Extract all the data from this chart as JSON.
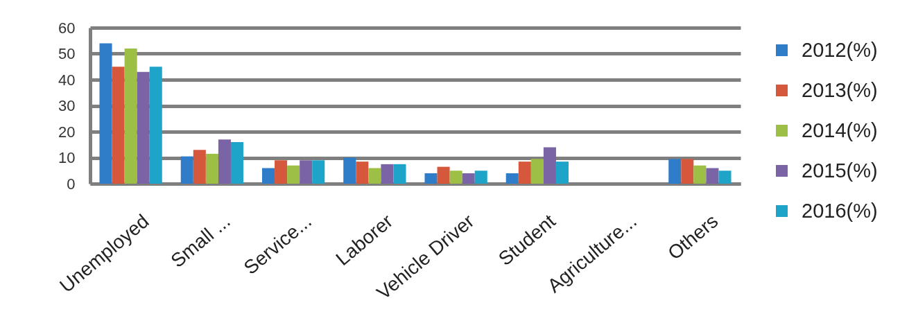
{
  "chart_data": {
    "type": "bar",
    "categories": [
      "Unemployed",
      "Small ...",
      "Service...",
      "Laborer",
      "Vehicle Driver",
      "Student",
      "Agriculture...",
      "Others"
    ],
    "series": [
      {
        "name": "2012(%)",
        "color": "#2f7cc8",
        "values": [
          54,
          10.5,
          6,
          10,
          4,
          4,
          null,
          9.5
        ]
      },
      {
        "name": "2013(%)",
        "color": "#d6583c",
        "values": [
          45,
          13,
          9,
          8.5,
          6.5,
          8.5,
          null,
          9.5
        ]
      },
      {
        "name": "2014(%)",
        "color": "#9dbf45",
        "values": [
          52,
          11.5,
          7,
          6,
          5,
          9.5,
          null,
          7
        ]
      },
      {
        "name": "2015(%)",
        "color": "#7b64a6",
        "values": [
          43,
          17,
          9,
          7.5,
          4,
          14,
          null,
          6
        ]
      },
      {
        "name": "2016(%)",
        "color": "#1ea4c8",
        "values": [
          45,
          16,
          9,
          7.5,
          5,
          8.5,
          null,
          5
        ]
      }
    ],
    "ylim": [
      0,
      60
    ],
    "yticks": [
      0,
      10,
      20,
      30,
      40,
      50,
      60
    ],
    "grid": "y",
    "legend": "right"
  }
}
